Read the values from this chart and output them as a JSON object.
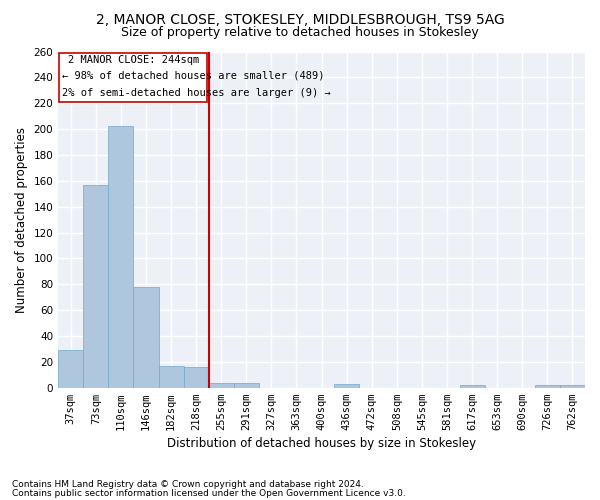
{
  "title1": "2, MANOR CLOSE, STOKESLEY, MIDDLESBROUGH, TS9 5AG",
  "title2": "Size of property relative to detached houses in Stokesley",
  "xlabel": "Distribution of detached houses by size in Stokesley",
  "ylabel": "Number of detached properties",
  "footnote1": "Contains HM Land Registry data © Crown copyright and database right 2024.",
  "footnote2": "Contains public sector information licensed under the Open Government Licence v3.0.",
  "annotation_line1": "2 MANOR CLOSE: 244sqm",
  "annotation_line2": "← 98% of detached houses are smaller (489)",
  "annotation_line3": "2% of semi-detached houses are larger (9) →",
  "bin_labels": [
    "37sqm",
    "73sqm",
    "110sqm",
    "146sqm",
    "182sqm",
    "218sqm",
    "255sqm",
    "291sqm",
    "327sqm",
    "363sqm",
    "400sqm",
    "436sqm",
    "472sqm",
    "508sqm",
    "545sqm",
    "581sqm",
    "617sqm",
    "653sqm",
    "690sqm",
    "726sqm",
    "762sqm"
  ],
  "bar_values": [
    29,
    157,
    202,
    78,
    17,
    16,
    4,
    4,
    0,
    0,
    0,
    3,
    0,
    0,
    0,
    0,
    2,
    0,
    0,
    2,
    2
  ],
  "bar_color": "#aec6de",
  "bar_edge_color": "#6fa8cc",
  "vline_color": "#cc0000",
  "box_color": "#cc0000",
  "ylim": [
    0,
    260
  ],
  "yticks": [
    0,
    20,
    40,
    60,
    80,
    100,
    120,
    140,
    160,
    180,
    200,
    220,
    240,
    260
  ],
  "bg_color": "#edf1f7",
  "grid_color": "#ffffff",
  "title1_fontsize": 10,
  "title2_fontsize": 9,
  "axis_label_fontsize": 8.5,
  "tick_fontsize": 7.5,
  "annotation_fontsize": 7.5,
  "footnote_fontsize": 6.5
}
